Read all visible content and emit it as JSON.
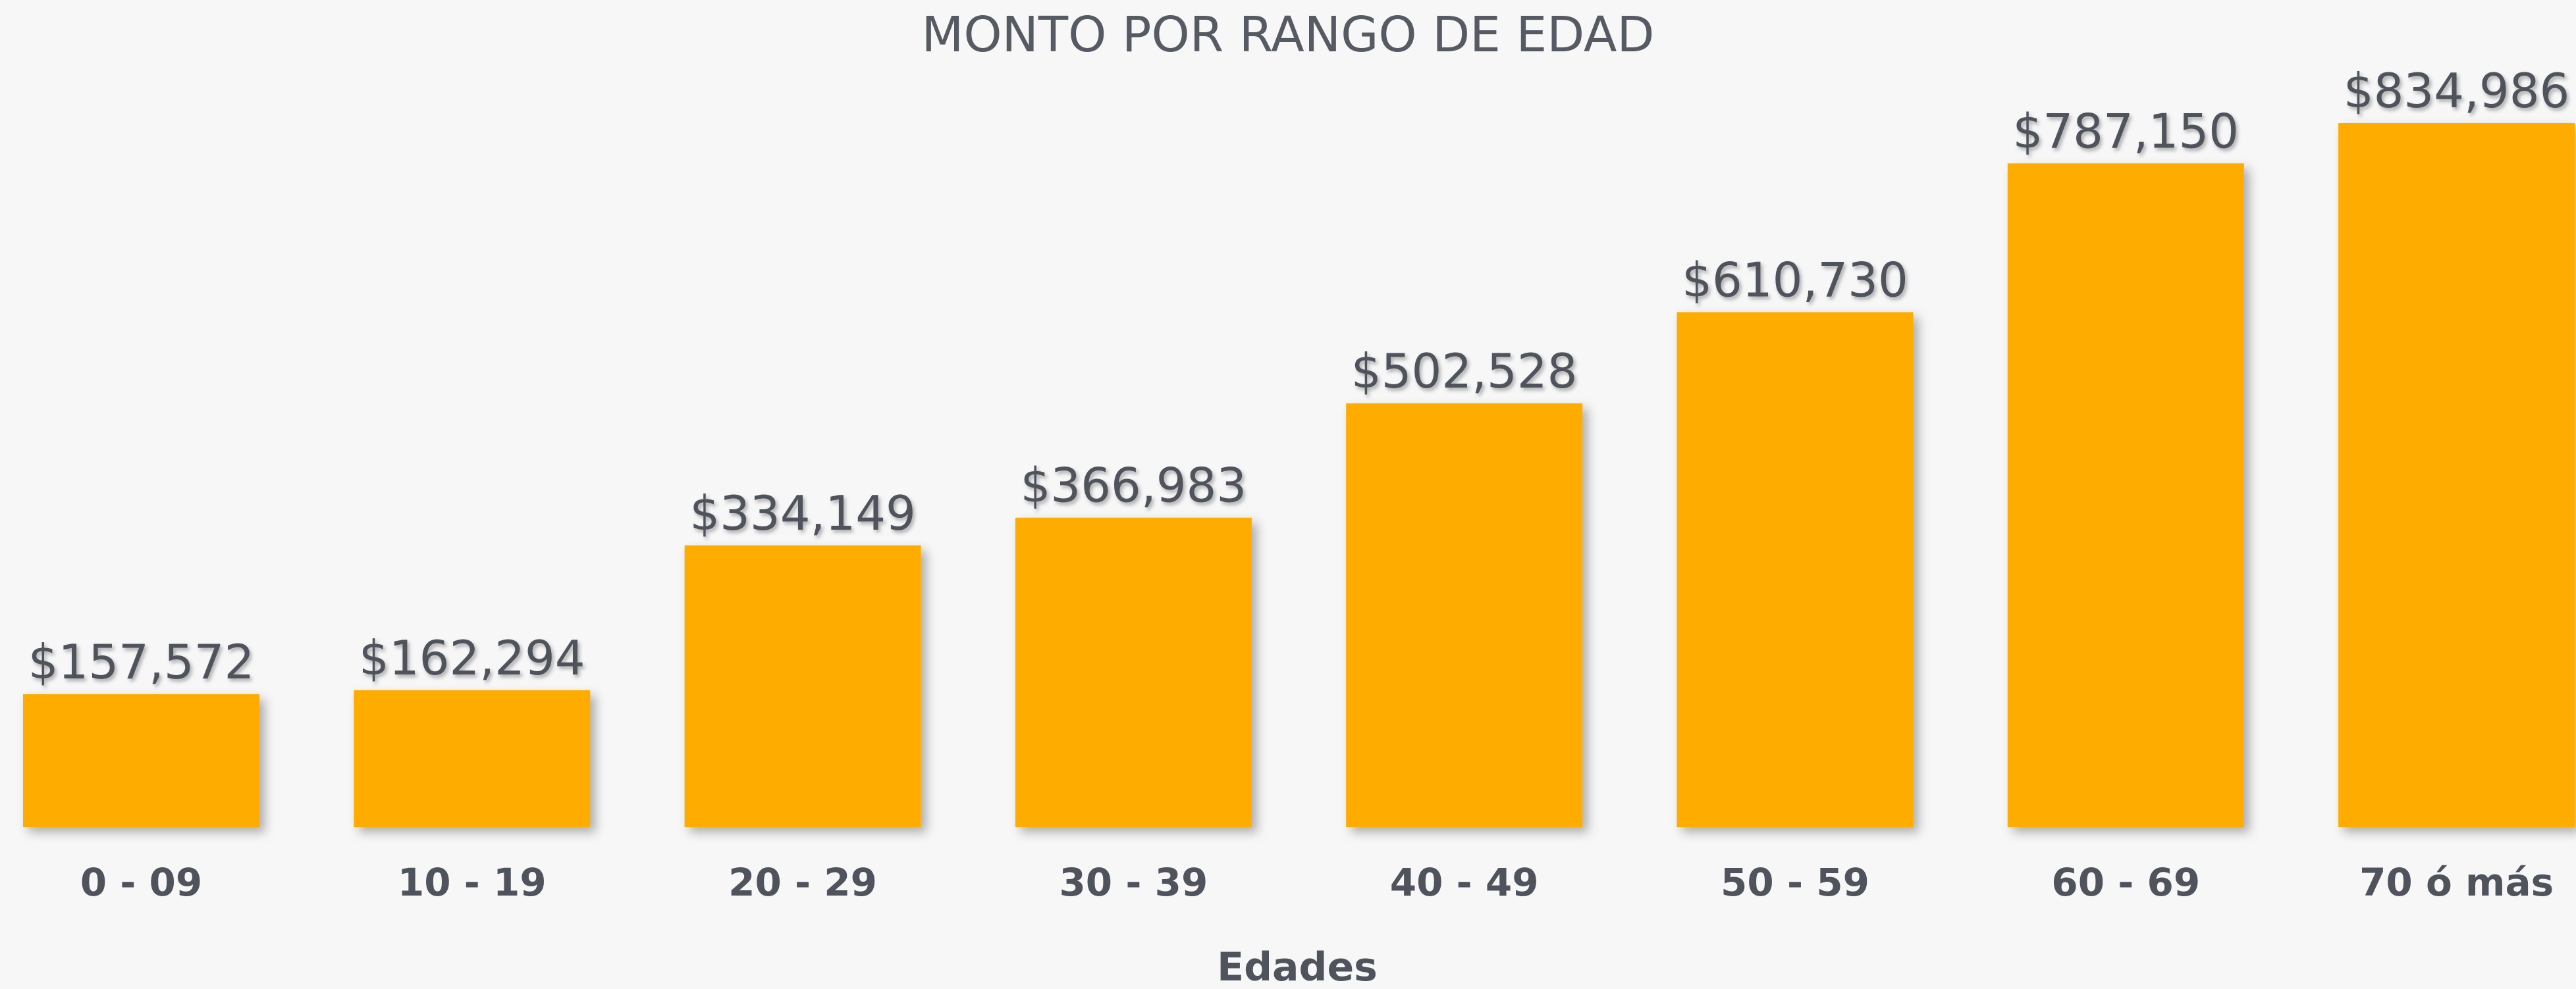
{
  "chart_data": {
    "type": "bar",
    "title": "MONTO POR RANGO DE EDAD",
    "x_label": "Edades",
    "categories": [
      "0 - 09",
      "10 - 19",
      "20 - 29",
      "30 - 39",
      "40 - 49",
      "50 - 59",
      "60 - 69",
      "70 ó más"
    ],
    "values": [
      157572,
      162294,
      334149,
      366983,
      502528,
      610730,
      787150,
      834986
    ],
    "value_labels": [
      "$157,572",
      "$162,294",
      "$334,149",
      "$366,983",
      "$502,528",
      "$610,730",
      "$787,150",
      "$834,986"
    ],
    "color": "#ffac00"
  }
}
